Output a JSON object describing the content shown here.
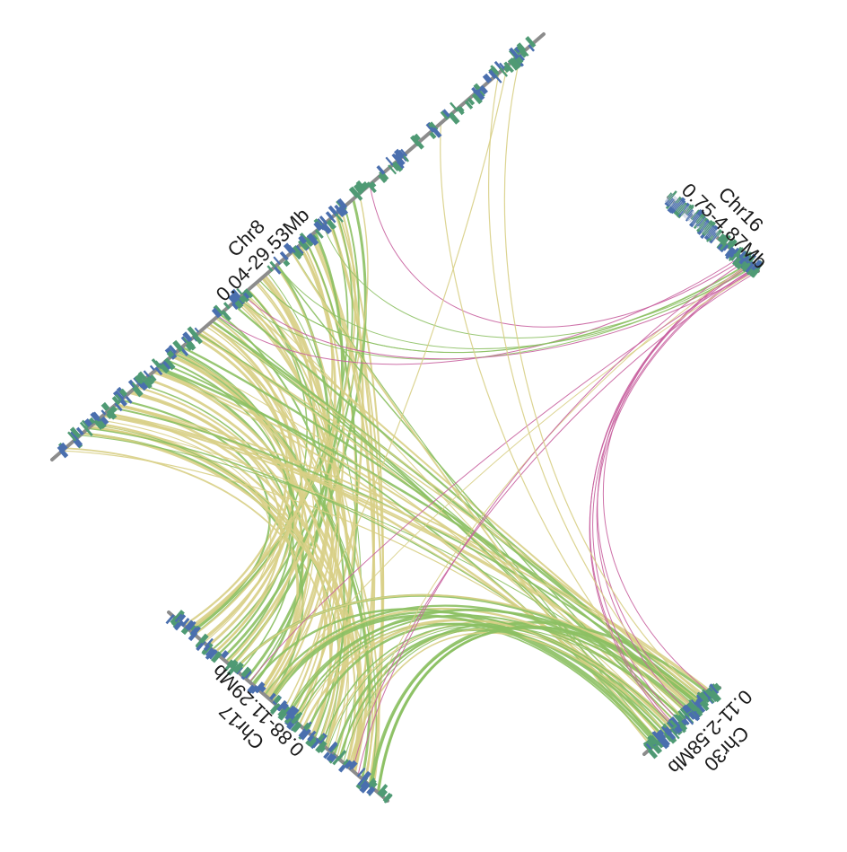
{
  "colors": {
    "axis": "#8c8c8c",
    "gene_blue": "#4a6fae",
    "gene_green": "#4f9a74",
    "link_yellow": "#d8cf86",
    "link_green": "#8cc063",
    "link_pink": "#c8609e"
  },
  "chromosomes": [
    {
      "id": "chr8",
      "name": "Chr8",
      "range": "0.04-29.53Mb"
    },
    {
      "id": "chr16",
      "name": "Chr16",
      "range": "0.75-4.87Mb"
    },
    {
      "id": "chr17",
      "name": "Chr17",
      "range": "0.88-11.29Mb"
    },
    {
      "id": "chr30",
      "name": "Chr30",
      "range": "0.11-2.58Mb"
    }
  ]
}
